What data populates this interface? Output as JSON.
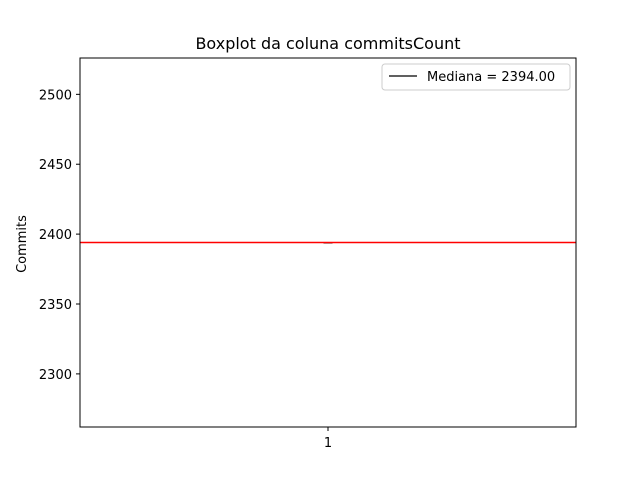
{
  "chart_data": {
    "type": "boxplot",
    "title": "Boxplot da coluna commitsCount",
    "xlabel": "",
    "ylabel": "Commits",
    "categories": [
      "1"
    ],
    "ylim": [
      2262,
      2526
    ],
    "yticks": [
      2300,
      2350,
      2400,
      2450,
      2500
    ],
    "ytick_labels": [
      "2300",
      "2350",
      "2400",
      "2450",
      "2500"
    ],
    "series": [
      {
        "category": "1",
        "min": 2394,
        "q1": 2394,
        "median": 2394,
        "q3": 2394,
        "max": 2394
      }
    ],
    "legend": {
      "placement": "top-right",
      "entries": [
        {
          "label": "Mediana = 2394.00",
          "color": "#000000"
        }
      ]
    },
    "colors": {
      "median_line": "#ff0000",
      "box": "#000000",
      "axes": "#000000"
    },
    "grid": false
  }
}
